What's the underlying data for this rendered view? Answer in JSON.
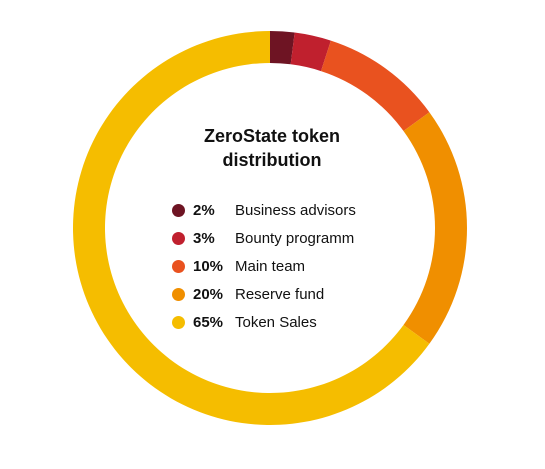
{
  "chart_data": {
    "type": "pie",
    "title_lines": [
      "ZeroState token",
      "distribution"
    ],
    "legend_position": "center",
    "slices": [
      {
        "label": "Business advisors",
        "value": 2,
        "value_label": "2%",
        "color": "#6e1423"
      },
      {
        "label": "Bounty programm",
        "value": 3,
        "value_label": "3%",
        "color": "#c0202e"
      },
      {
        "label": "Main team",
        "value": 10,
        "value_label": "10%",
        "color": "#e9521f"
      },
      {
        "label": "Reserve fund",
        "value": 20,
        "value_label": "20%",
        "color": "#f08f00"
      },
      {
        "label": "Token Sales",
        "value": 65,
        "value_label": "65%",
        "color": "#f5bd00"
      }
    ]
  }
}
